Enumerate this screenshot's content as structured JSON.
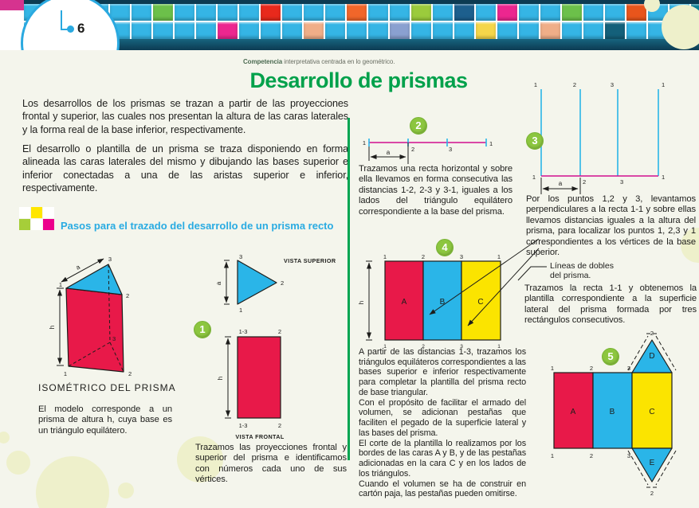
{
  "theme": {
    "background": "#f4f5ec",
    "title_green": "#00a14b",
    "heading_cyan": "#29abe2",
    "badge_green": "#8cc63f",
    "face_red": "#e81949",
    "face_cyan": "#2ab5e8",
    "face_yellow": "#fbe400",
    "construction_magenta": "#d10f8f",
    "divider_green": "#00a551"
  },
  "header": {
    "page_number": "6",
    "mosaic": {
      "rows": 2,
      "cols": 32,
      "base_color": "#35b5e5",
      "accents": [
        {
          "r": 0,
          "c": 6,
          "color": "#6cc04a"
        },
        {
          "r": 0,
          "c": 11,
          "color": "#e8291c"
        },
        {
          "r": 0,
          "c": 15,
          "color": "#f1662a"
        },
        {
          "r": 0,
          "c": 18,
          "color": "#9bcb3c"
        },
        {
          "r": 0,
          "c": 20,
          "color": "#1d5f8d"
        },
        {
          "r": 0,
          "c": 22,
          "color": "#ec268f"
        },
        {
          "r": 0,
          "c": 25,
          "color": "#6cc04a"
        },
        {
          "r": 0,
          "c": 28,
          "color": "#e8551c"
        },
        {
          "r": 0,
          "c": 31,
          "color": "#0f7f95"
        },
        {
          "r": 1,
          "c": 9,
          "color": "#ec268f"
        },
        {
          "r": 1,
          "c": 13,
          "color": "#efae88"
        },
        {
          "r": 1,
          "c": 17,
          "color": "#8aa0d0"
        },
        {
          "r": 1,
          "c": 21,
          "color": "#f5d64a"
        },
        {
          "r": 1,
          "c": 24,
          "color": "#efae88"
        },
        {
          "r": 1,
          "c": 27,
          "color": "#14607a"
        },
        {
          "r": 1,
          "c": 30,
          "color": "#6cc04a"
        }
      ]
    }
  },
  "meta": {
    "bold": "Competencia",
    "rest": " interpretativa centrada en lo geométrico."
  },
  "title": "Desarrollo de prismas",
  "intro": {
    "p1": "Los desarrollos de los prismas se trazan a partir de las proyecciones frontal y superior, las cuales nos presentan la altura de las caras laterales y la forma real de la base inferior, respectivamente.",
    "p2": "El desarrollo o plantilla de un prisma se traza disponiendo en forma alineada las caras laterales del mismo y dibujando las bases superior e inferior conectadas a una de las aristas superior e inferior, respectivamente."
  },
  "section_heading": "Pasos para el trazado del desarrollo de un prisma recto",
  "isometric": {
    "caption": "ISOMÉTRICO DEL PRISMA",
    "note": "El modelo corresponde a un prisma de altura h, cuya base es un triángulo equilátero."
  },
  "views": {
    "top": "VISTA SUPERIOR",
    "front": "VISTA FRONTAL"
  },
  "labels": {
    "n1": "1",
    "n2": "2",
    "n3": "3",
    "a": "a",
    "h": "h",
    "r13": "1-3",
    "A": "A",
    "B": "B",
    "C": "C",
    "D": "D",
    "E": "E"
  },
  "steps": {
    "s1": {
      "num": "1",
      "text": "Trazamos las proyecciones frontal y superior del prisma e identificamos con números cada uno de sus vértices."
    },
    "s2": {
      "num": "2",
      "text": "Trazamos una recta horizontal y sobre ella llevamos en forma consecutiva las distancias 1-2, 2-3 y 3-1, iguales a los lados del triángulo equilátero correspondiente a la base del prisma."
    },
    "s3": {
      "num": "3",
      "text": "Por los puntos 1,2 y 3, levantamos perpendiculares a la recta 1-1 y sobre ellas llevamos distancias iguales a la altura del prisma, para localizar los puntos 1, 2,3 y 1 correspondientes a los vértices de la base superior."
    },
    "s4": {
      "num": "4",
      "annotation": "Líneas de dobles del prisma.",
      "text": "Trazamos la recta 1-1 y obtenemos la plantilla correspondiente a la superficie lateral del prisma formada por tres rectángulos consecutivos."
    },
    "s5": {
      "num": "5",
      "paragraphs": [
        "A partir de las distancias 1-3, trazamos los triángulos equiláteros correspondientes a las bases superior e inferior respectivamente para completar la plantilla del prisma recto de base triangular.",
        "Con el propósito de facilitar el armado del volumen, se adicionan pestañas que faciliten el pegado de la superficie lateral y las bases del prisma.",
        "El corte de la plantilla lo realizamos por los bordes de las caras A y B, y de las pestañas adicionadas en la cara C y en los lados de los triángulos.",
        "Cuando el volumen se ha de construir en cartón paja, las pestañas pueden omitirse."
      ]
    }
  }
}
